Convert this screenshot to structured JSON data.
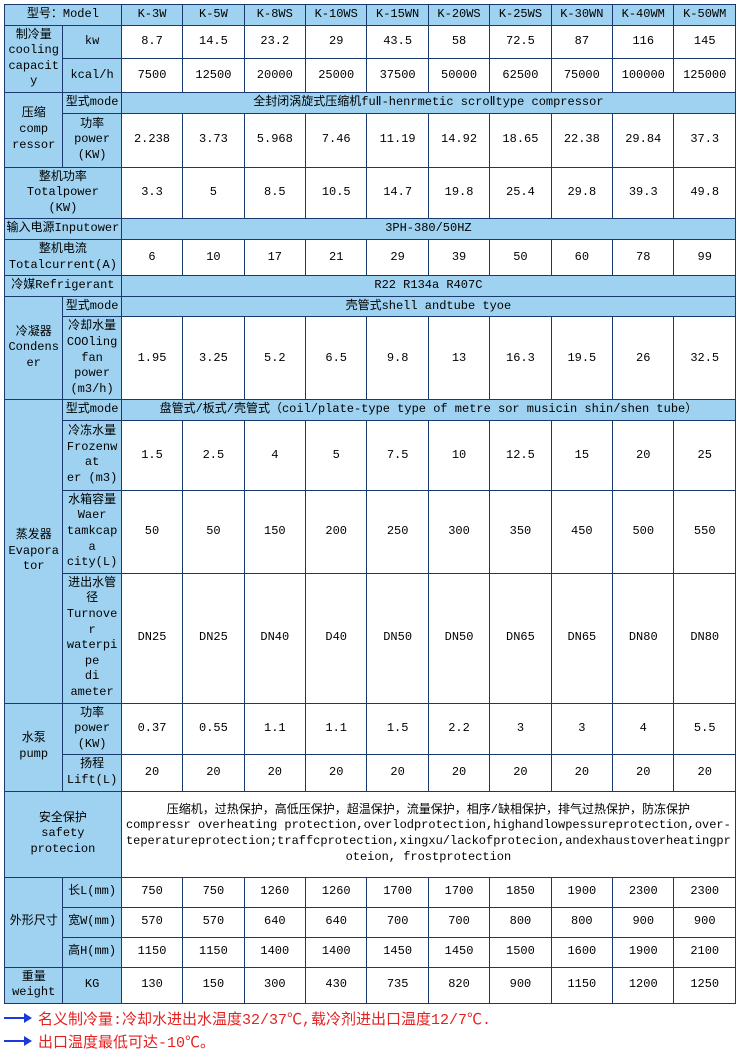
{
  "colors": {
    "header_bg": "#9ed2f0",
    "border": "#1a3a6e",
    "note_arrow": "#1a3ae0",
    "note_text": "#e52020"
  },
  "models_label": "型号：Model",
  "models": [
    "K-3W",
    "K-5W",
    "K-8WS",
    "K-10WS",
    "K-15WN",
    "K-20WS",
    "K-25WS",
    "K-30WN",
    "K-40WM",
    "K-50WM"
  ],
  "cooling_capacity": {
    "group": "制冷量\ncooling capacity",
    "rows": [
      {
        "label": "kw",
        "values": [
          "8.7",
          "14.5",
          "23.2",
          "29",
          "43.5",
          "58",
          "72.5",
          "87",
          "116",
          "145"
        ]
      },
      {
        "label": "kcal/h",
        "values": [
          "7500",
          "12500",
          "20000",
          "25000",
          "37500",
          "50000",
          "62500",
          "75000",
          "100000",
          "125000"
        ]
      }
    ]
  },
  "compressor": {
    "group": "压缩\ncomp\nressor",
    "mode_label": "型式mode",
    "mode_value": "全封闭涡旋式压缩机fuⅡ-henrmetic scroⅡtype compressor",
    "power_label": "功率\npower\n(KW)",
    "power_values": [
      "2.238",
      "3.73",
      "5.968",
      "7.46",
      "11.19",
      "14.92",
      "18.65",
      "22.38",
      "29.84",
      "37.3"
    ]
  },
  "total_power": {
    "label": "整机功率\nTotalpower\n(KW)",
    "values": [
      "3.3",
      "5",
      "8.5",
      "10.5",
      "14.7",
      "19.8",
      "25.4",
      "29.8",
      "39.3",
      "49.8"
    ]
  },
  "input_power": {
    "label": "输入电源Inputower",
    "value": "3PH-380/50HZ"
  },
  "total_current": {
    "label": "整机电流\nTotalcurrent(A)",
    "values": [
      "6",
      "10",
      "17",
      "21",
      "29",
      "39",
      "50",
      "60",
      "78",
      "99"
    ]
  },
  "refrigerant": {
    "label": "冷媒Refrigerant",
    "value": "R22 R134a R407C"
  },
  "condenser": {
    "group": "冷凝器\nCondenser",
    "mode_label": "型式mode",
    "mode_value": "壳管式shell andtube tyoe",
    "flow_label": "冷却水量\nCOOling\nfan power\n(m3/h)",
    "flow_values": [
      "1.95",
      "3.25",
      "5.2",
      "6.5",
      "9.8",
      "13",
      "16.3",
      "19.5",
      "26",
      "32.5"
    ]
  },
  "evaporator": {
    "group": "蒸发器\nEvaporator",
    "mode_label": "型式mode",
    "mode_value": "盘管式/板式/壳管式（coil/plate-type type of metre sor musicin shin/shen tube）",
    "rows": [
      {
        "label": "冷冻水量\nFrozenwat\ner (m3)",
        "values": [
          "1.5",
          "2.5",
          "4",
          "5",
          "7.5",
          "10",
          "12.5",
          "15",
          "20",
          "25"
        ]
      },
      {
        "label": "水箱容量\nWaer\ntamkcapa\ncity(L)",
        "values": [
          "50",
          "50",
          "150",
          "200",
          "250",
          "300",
          "350",
          "450",
          "500",
          "550"
        ]
      },
      {
        "label": "进出水管径\nTurnover\nwaterpipe\ndi ameter",
        "values": [
          "DN25",
          "DN25",
          "DN40",
          "D40",
          "DN50",
          "DN50",
          "DN65",
          "DN65",
          "DN80",
          "DN80"
        ]
      }
    ]
  },
  "pump": {
    "group": "水泵\npump",
    "rows": [
      {
        "label": "功率power\n(KW)",
        "values": [
          "0.37",
          "0.55",
          "1.1",
          "1.1",
          "1.5",
          "2.2",
          "3",
          "3",
          "4",
          "5.5"
        ]
      },
      {
        "label": "扬程\nLift(L)",
        "values": [
          "20",
          "20",
          "20",
          "20",
          "20",
          "20",
          "20",
          "20",
          "20",
          "20"
        ]
      }
    ]
  },
  "safety": {
    "label": "安全保护\nsafety protecion",
    "value": "压缩机，过热保护，高低压保护，超温保护，流量保护，相序/缺相保护，排气过热保护，防冻保护\ncompressr overheating protection,overlodprotection,highandlowpessureprotection,over-teperatureprotection;traffcprotection,xingxu/lackofprotecion,andexhaustoverheatingproteion,    frostprotection"
  },
  "dimensions": {
    "group": "外形尺寸",
    "rows": [
      {
        "label": "长L(mm)",
        "values": [
          "750",
          "750",
          "1260",
          "1260",
          "1700",
          "1700",
          "1850",
          "1900",
          "2300",
          "2300"
        ]
      },
      {
        "label": "宽W(mm)",
        "values": [
          "570",
          "570",
          "640",
          "640",
          "700",
          "700",
          "800",
          "800",
          "900",
          "900"
        ]
      },
      {
        "label": "高H(mm)",
        "values": [
          "1150",
          "1150",
          "1400",
          "1400",
          "1450",
          "1450",
          "1500",
          "1600",
          "1900",
          "2100"
        ]
      }
    ]
  },
  "weight": {
    "group": "重量\nweight",
    "label": "KG",
    "values": [
      "130",
      "150",
      "300",
      "430",
      "735",
      "820",
      "900",
      "1150",
      "1200",
      "1250"
    ]
  },
  "notes": [
    "名义制冷量:冷却水进出水温度32/37℃,载冷剂进出口温度12/7℃.",
    "出口温度最低可达-10℃。"
  ]
}
